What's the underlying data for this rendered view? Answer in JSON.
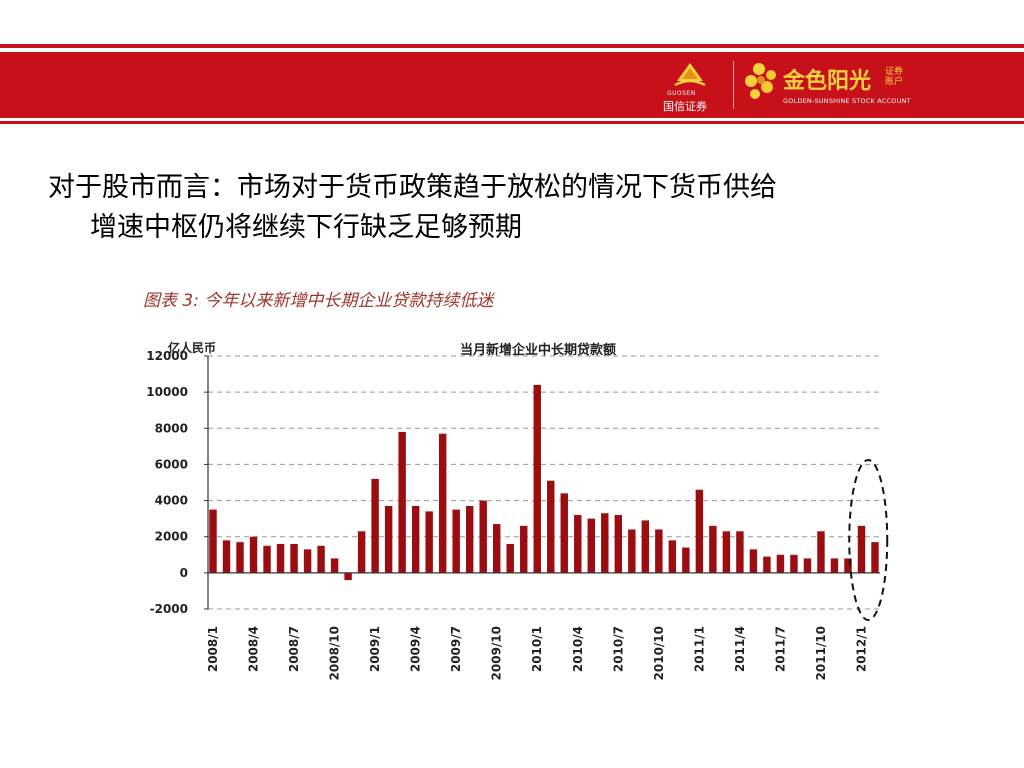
{
  "header": {
    "guosen_en": "GUOSEN",
    "guosen_cn": "国信证券",
    "golden_cn": "金色阳光",
    "golden_small": "证券账户",
    "golden_en": "GOLDEN-SUNSHINE STOCK ACCOUNT",
    "brand_color": "#c8101a",
    "gold_color": "#f6d23c"
  },
  "headline": {
    "line1": "对于股市而言：市场对于货币政策趋于放松的情况下货币供给",
    "line2": "增速中枢仍将继续下行缺乏足够预期"
  },
  "figure_caption": "图表 3:  今年以来新增中长期企业贷款持续低迷",
  "chart_data": {
    "type": "bar",
    "title": "当月新增企业中长期贷款额",
    "ylabel": "亿人民币",
    "ylim": [
      -2000,
      12000
    ],
    "yticks": [
      -2000,
      0,
      2000,
      4000,
      6000,
      8000,
      10000,
      12000
    ],
    "ytick_labels": [
      "-2000",
      "0",
      "2000",
      "4000",
      "6000",
      "8000",
      "10000",
      "12000"
    ],
    "grid": true,
    "bar_color": "#9b0d10",
    "highlight": "dashed ellipse around 2012/1–2012/2",
    "x_labels": [
      "2008/1",
      "2008/4",
      "2008/7",
      "2008/10",
      "2009/1",
      "2009/4",
      "2009/7",
      "2009/10",
      "2010/1",
      "2010/4",
      "2010/7",
      "2010/10",
      "2011/1",
      "2011/4",
      "2011/7",
      "2011/10",
      "2012/1"
    ],
    "label_every": 3,
    "categories": [
      "2008/1",
      "2008/2",
      "2008/3",
      "2008/4",
      "2008/5",
      "2008/6",
      "2008/7",
      "2008/8",
      "2008/9",
      "2008/10",
      "2008/11",
      "2008/12",
      "2009/1",
      "2009/2",
      "2009/3",
      "2009/4",
      "2009/5",
      "2009/6",
      "2009/7",
      "2009/8",
      "2009/9",
      "2009/10",
      "2009/11",
      "2009/12",
      "2010/1",
      "2010/2",
      "2010/3",
      "2010/4",
      "2010/5",
      "2010/6",
      "2010/7",
      "2010/8",
      "2010/9",
      "2010/10",
      "2010/11",
      "2010/12",
      "2011/1",
      "2011/2",
      "2011/3",
      "2011/4",
      "2011/5",
      "2011/6",
      "2011/7",
      "2011/8",
      "2011/9",
      "2011/10",
      "2011/11",
      "2011/12",
      "2012/1",
      "2012/2"
    ],
    "values": [
      3500,
      1800,
      1700,
      2000,
      1500,
      1600,
      1600,
      1300,
      1500,
      800,
      -400,
      2300,
      5200,
      3700,
      7800,
      3700,
      3400,
      7700,
      3500,
      3700,
      4000,
      2700,
      1600,
      2600,
      10400,
      5100,
      4400,
      3200,
      3000,
      3300,
      3200,
      2400,
      2900,
      2400,
      1800,
      1400,
      4600,
      2600,
      2300,
      2300,
      1300,
      900,
      1000,
      1000,
      800,
      2300,
      800,
      800,
      2600,
      1700
    ]
  }
}
